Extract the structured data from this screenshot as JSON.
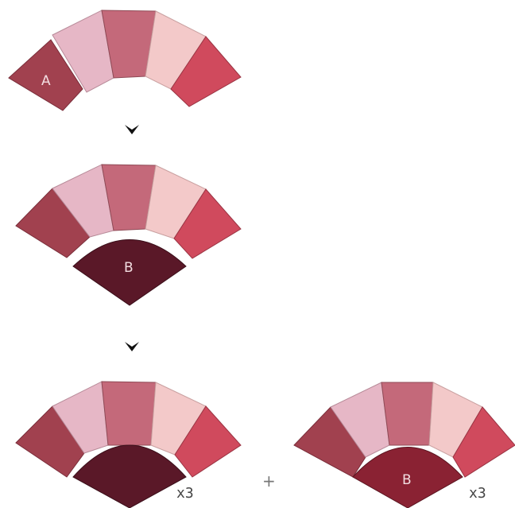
{
  "labels": {
    "piece_a": "A",
    "piece_b": "B",
    "piece_b_small": "B"
  },
  "multipliers": {
    "left": "x3",
    "right": "x3"
  },
  "operator": "+",
  "colors": {
    "blade_1": "#a1414f",
    "blade_2": "#e6b7c6",
    "blade_3": "#c4697a",
    "blade_4": "#f3c9c9",
    "blade_5": "#d04a5d",
    "center_dark": "#5a1828",
    "center_red": "#8a2233",
    "arrow": "#111111"
  },
  "icons": {
    "step_arrow": "chevron-down-icon"
  }
}
